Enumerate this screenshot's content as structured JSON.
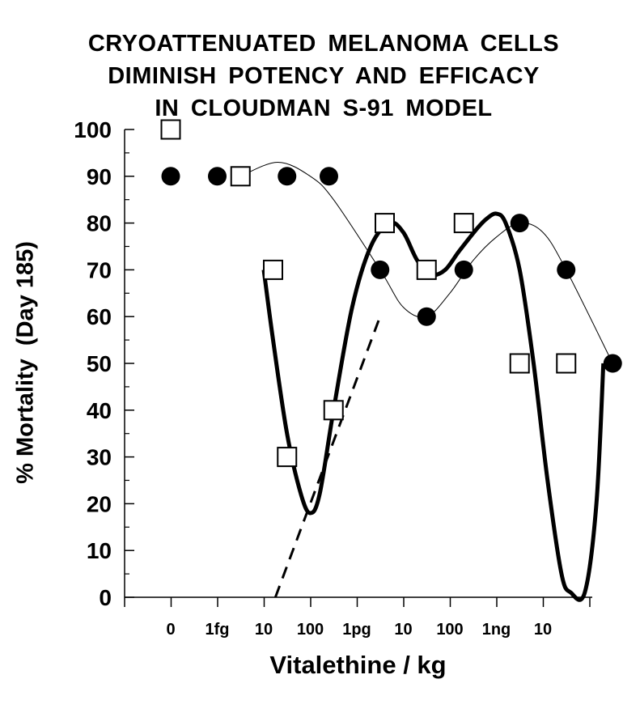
{
  "chart_data": {
    "type": "scatter",
    "title": [
      "CRYOATTENUATED MELANOMA CELLS",
      "DIMINISH POTENCY AND EFFICACY",
      "IN CLOUDMAN S-91 MODEL"
    ],
    "xlabel": "Vitalethine / kg",
    "ylabel": "% Mortality  (Day 185)",
    "ylim": [
      0,
      100
    ],
    "yticks": [
      0,
      10,
      20,
      30,
      40,
      50,
      60,
      70,
      80,
      90,
      100
    ],
    "xtick_labels": [
      "0",
      "1fg",
      "10",
      "100",
      "1pg",
      "10",
      "100",
      "1ng",
      "10"
    ],
    "grid": false,
    "series": [
      {
        "marker": "filled-circle",
        "x": [
          0,
          1,
          2.5,
          3.4,
          4.5,
          5.5,
          6.3,
          7.5,
          8.5
        ],
        "y": [
          90,
          90,
          90,
          90,
          70,
          60,
          70,
          80,
          70
        ],
        "x_extra": [
          9.5
        ],
        "y_extra": [
          50
        ]
      },
      {
        "marker": "open-square",
        "x": [
          0,
          1.5,
          2.2,
          2.5,
          3.5,
          4.6,
          5.5,
          6.3,
          7.5,
          8.5
        ],
        "y": [
          100,
          90,
          70,
          30,
          40,
          80,
          70,
          80,
          50,
          50
        ]
      }
    ],
    "curves": [
      {
        "style": "thin-solid",
        "follows": "filled-circle"
      },
      {
        "style": "thick-solid",
        "follows": "open-square"
      },
      {
        "style": "dashed",
        "from_y": 0,
        "to_y": 60
      }
    ]
  }
}
